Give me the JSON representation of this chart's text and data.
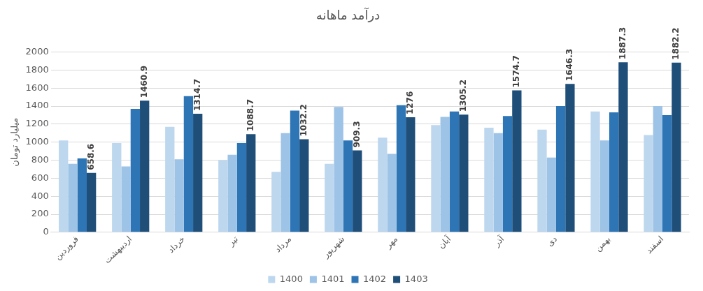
{
  "chart_data": {
    "type": "bar",
    "title": "درآمد ماهانه",
    "ylabel": "میلیارد تومان",
    "categories": [
      "فروردین",
      "اردیبهشت",
      "خرداد",
      "تیر",
      "مرداد",
      "شهریور",
      "مهر",
      "آبان",
      "آذر",
      "دی",
      "بهمن",
      "اسفند"
    ],
    "series": [
      {
        "name": "1400",
        "color": "#bdd7ee",
        "values": [
          1020,
          990,
          1170,
          800,
          670,
          760,
          1050,
          1190,
          1160,
          1140,
          1340,
          1080
        ]
      },
      {
        "name": "1401",
        "color": "#9dc3e6",
        "values": [
          760,
          730,
          810,
          860,
          1100,
          1390,
          870,
          1280,
          1100,
          830,
          1020,
          1400
        ]
      },
      {
        "name": "1402",
        "color": "#2e75b6",
        "values": [
          820,
          1370,
          1510,
          990,
          1350,
          1020,
          1410,
          1340,
          1290,
          1400,
          1330,
          1300
        ]
      },
      {
        "name": "1403",
        "color": "#1f4e79",
        "values": [
          658.6,
          1460.9,
          1314.7,
          1088.7,
          1032.2,
          909.3,
          1276,
          1305.2,
          1574.7,
          1646.3,
          1887.3,
          1882.2
        ],
        "value_labels": [
          "658.6",
          "1460.9",
          "1314.7",
          "1088.7",
          "1032.2",
          "909.3",
          "1276",
          "1305.2",
          "1574.7",
          "1646.3",
          "1887.3",
          "1882.2"
        ]
      }
    ],
    "ylim": [
      0,
      2000
    ],
    "yticks": [
      0,
      200,
      400,
      600,
      800,
      1000,
      1200,
      1400,
      1600,
      1800,
      2000
    ],
    "grid": "y",
    "legend": "bottom"
  }
}
